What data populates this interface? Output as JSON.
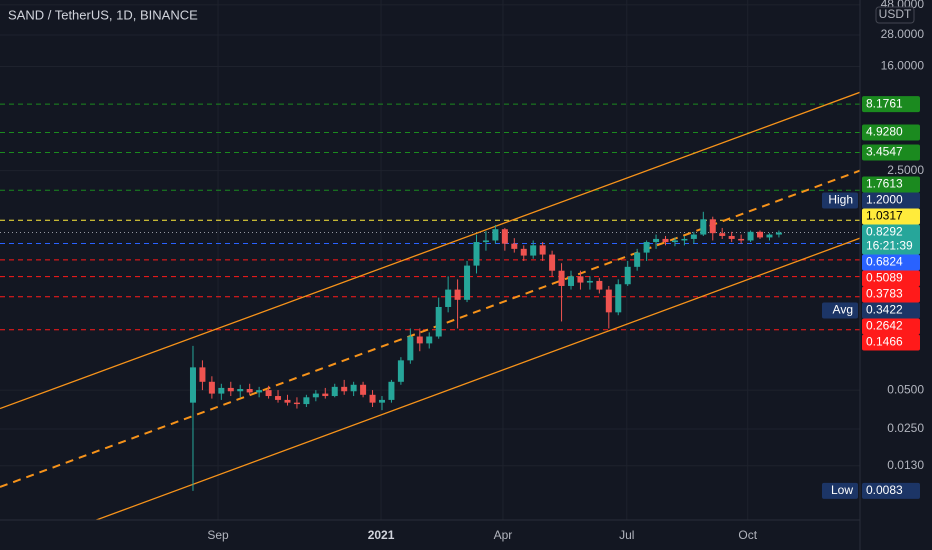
{
  "chart_data": {
    "type": "candlestick",
    "title": "SAND / TetherUS, 1D, BINANCE",
    "currency": "USDT",
    "log_scale": true,
    "grid": true,
    "up_color": "#26a69a",
    "down_color": "#ef5350",
    "categories": [
      null,
      null,
      null,
      null,
      null,
      null,
      null,
      null,
      null,
      null,
      null,
      null,
      null,
      null,
      null,
      null,
      null,
      null,
      null,
      null,
      null,
      null,
      null,
      null,
      null,
      null,
      null,
      null,
      null,
      null,
      null,
      null,
      null,
      null,
      null,
      null,
      null,
      null,
      null,
      null,
      null,
      null,
      null,
      null,
      null,
      null,
      null,
      null,
      null,
      null,
      null,
      null,
      null,
      null,
      null,
      null,
      null,
      null,
      null,
      null,
      null,
      null,
      null
    ],
    "open": [
      0.04,
      0.075,
      0.058,
      0.047,
      0.052,
      0.049,
      0.051,
      0.048,
      0.05,
      0.045,
      0.042,
      0.04,
      0.039,
      0.044,
      0.047,
      0.045,
      0.053,
      0.049,
      0.055,
      0.046,
      0.04,
      0.042,
      0.058,
      0.085,
      0.13,
      0.115,
      0.13,
      0.22,
      0.3,
      0.25,
      0.46,
      0.7,
      0.72,
      0.88,
      0.68,
      0.62,
      0.55,
      0.66,
      0.56,
      0.42,
      0.32,
      0.38,
      0.34,
      0.35,
      0.3,
      0.2,
      0.33,
      0.45,
      0.58,
      0.7,
      0.74,
      0.7,
      0.72,
      0.74,
      0.8,
      1.05,
      0.82,
      0.78,
      0.74,
      0.72,
      0.84,
      0.76,
      0.8
    ],
    "high": [
      0.11,
      0.085,
      0.064,
      0.056,
      0.058,
      0.055,
      0.056,
      0.053,
      0.054,
      0.05,
      0.046,
      0.044,
      0.046,
      0.05,
      0.052,
      0.056,
      0.06,
      0.058,
      0.058,
      0.05,
      0.045,
      0.06,
      0.09,
      0.15,
      0.15,
      0.14,
      0.26,
      0.38,
      0.36,
      0.5,
      0.8,
      0.85,
      0.95,
      0.9,
      0.75,
      0.66,
      0.72,
      0.7,
      0.6,
      0.48,
      0.42,
      0.42,
      0.38,
      0.37,
      0.32,
      0.36,
      0.5,
      0.62,
      0.72,
      0.8,
      0.78,
      0.76,
      0.78,
      0.84,
      1.2,
      1.1,
      0.9,
      0.84,
      0.8,
      0.86,
      0.86,
      0.82,
      0.86
    ],
    "low": [
      0.0083,
      0.05,
      0.043,
      0.042,
      0.045,
      0.044,
      0.046,
      0.044,
      0.043,
      0.04,
      0.038,
      0.036,
      0.037,
      0.041,
      0.043,
      0.044,
      0.046,
      0.045,
      0.044,
      0.037,
      0.035,
      0.04,
      0.055,
      0.08,
      0.1,
      0.105,
      0.125,
      0.2,
      0.15,
      0.24,
      0.4,
      0.6,
      0.68,
      0.6,
      0.58,
      0.5,
      0.52,
      0.5,
      0.38,
      0.17,
      0.3,
      0.3,
      0.3,
      0.28,
      0.15,
      0.19,
      0.32,
      0.42,
      0.5,
      0.62,
      0.66,
      0.65,
      0.66,
      0.68,
      0.78,
      0.72,
      0.74,
      0.7,
      0.68,
      0.7,
      0.74,
      0.72,
      0.76
    ],
    "close": [
      0.075,
      0.058,
      0.047,
      0.052,
      0.049,
      0.051,
      0.048,
      0.05,
      0.045,
      0.042,
      0.04,
      0.039,
      0.044,
      0.047,
      0.045,
      0.053,
      0.049,
      0.055,
      0.046,
      0.04,
      0.042,
      0.058,
      0.085,
      0.13,
      0.115,
      0.13,
      0.22,
      0.3,
      0.25,
      0.46,
      0.7,
      0.72,
      0.88,
      0.68,
      0.62,
      0.55,
      0.66,
      0.56,
      0.42,
      0.32,
      0.38,
      0.34,
      0.35,
      0.3,
      0.2,
      0.33,
      0.45,
      0.58,
      0.7,
      0.74,
      0.7,
      0.72,
      0.74,
      0.8,
      1.05,
      0.82,
      0.78,
      0.74,
      0.72,
      0.84,
      0.76,
      0.8,
      0.8292
    ],
    "xlim": [
      -20.42,
      70.58
    ],
    "xticks": [
      {
        "value": 2.65,
        "label": "Sep"
      },
      {
        "value": 19.9,
        "label": "2021"
      },
      {
        "value": 32.8,
        "label": "Apr"
      },
      {
        "value": 45.9,
        "label": "Jul"
      },
      {
        "value": 58.7,
        "label": "Oct"
      }
    ],
    "ylim": [
      0.00494,
      52.3
    ],
    "yticks": [
      {
        "value": 48,
        "label": "48.0000"
      },
      {
        "value": 28,
        "label": "28.0000"
      },
      {
        "value": 16,
        "label": "16.0000"
      },
      {
        "value": 2.5,
        "label": "2.5000"
      },
      {
        "value": 0.05,
        "label": "0.0500"
      },
      {
        "value": 0.025,
        "label": "0.0250"
      },
      {
        "value": 0.013,
        "label": "0.0130"
      }
    ],
    "trendlines": [
      {
        "color": "#f7931a",
        "dashed": false,
        "points": [
          [
            -20.42,
            0.036
          ],
          [
            70.58,
            10.1
          ]
        ]
      },
      {
        "color": "#f7931a",
        "dashed": true,
        "points": [
          [
            -20.42,
            0.0089
          ],
          [
            70.58,
            2.5
          ]
        ]
      },
      {
        "color": "#f7931a",
        "dashed": false,
        "points": [
          [
            -10.37,
            0.0049
          ],
          [
            70.58,
            0.75
          ]
        ]
      }
    ],
    "levels": [
      {
        "value": 8.1761,
        "label": "8.1761",
        "color": "#1b8a1f",
        "text_color": "#ffffff",
        "line": "dashed"
      },
      {
        "value": 4.928,
        "label": "4.9280",
        "color": "#1b8a1f",
        "text_color": "#ffffff",
        "line": "dashed"
      },
      {
        "value": 3.4547,
        "label": "3.4547",
        "color": "#1b8a1f",
        "text_color": "#ffffff",
        "line": "dashed"
      },
      {
        "value": 1.7613,
        "label": "1.7613",
        "color": "#1b8a1f",
        "text_color": "#ffffff",
        "line": "dashed"
      },
      {
        "value": 1.2,
        "label": "1.2000",
        "tag": "High",
        "color": "#1c3566",
        "text_color": "#ffffff",
        "line": "none"
      },
      {
        "value": 1.0317,
        "label": "1.0317",
        "color": "#ffeb3b",
        "text_color": "#000000",
        "line": "dashed"
      },
      {
        "value": 0.8292,
        "label": "0.8292",
        "countdown": "16:21:39",
        "color": "#26a69a",
        "text_color": "#ffffff",
        "line": "dotted"
      },
      {
        "value": 0.6824,
        "label": "0.6824",
        "color": "#2962ff",
        "text_color": "#ffffff",
        "line": "dashed"
      },
      {
        "value": 0.5089,
        "label": "0.5089",
        "color": "#ff1a1a",
        "text_color": "#ffffff",
        "line": "dashed"
      },
      {
        "value": 0.3783,
        "label": "0.3783",
        "color": "#ff1a1a",
        "text_color": "#ffffff",
        "line": "dashed"
      },
      {
        "value": 0.3422,
        "label": "0.3422",
        "tag": "Avg",
        "color": "#1c3566",
        "text_color": "#ffffff",
        "line": "none"
      },
      {
        "value": 0.2642,
        "label": "0.2642",
        "color": "#ff1a1a",
        "text_color": "#ffffff",
        "line": "dashed"
      },
      {
        "value": 0.1466,
        "label": "0.1466",
        "color": "#ff1a1a",
        "text_color": "#ffffff",
        "line": "dashed"
      },
      {
        "value": 0.0083,
        "label": "0.0083",
        "tag": "Low",
        "color": "#1c3566",
        "text_color": "#ffffff",
        "line": "none"
      }
    ]
  }
}
